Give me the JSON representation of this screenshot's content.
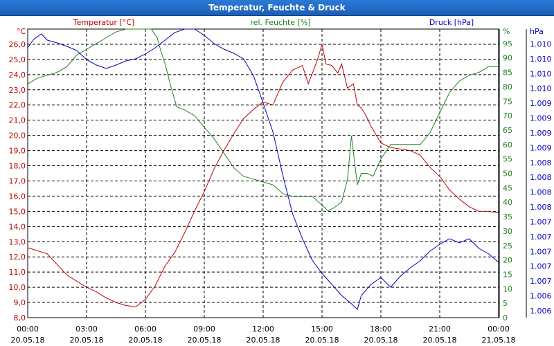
{
  "window": {
    "title": "Temperatur, Feuchte & Druck"
  },
  "colors": {
    "temperature": "#c00000",
    "humidity": "#208020",
    "pressure": "#0000c0",
    "grid": "#000000"
  },
  "chart_data": {
    "type": "line",
    "title": "Temperatur, Feuchte & Druck",
    "x_ticks": [
      {
        "time": "00:00",
        "date": "20.05.18"
      },
      {
        "time": "03:00",
        "date": "20.05.18"
      },
      {
        "time": "06:00",
        "date": "20.05.18"
      },
      {
        "time": "09:00",
        "date": "20.05.18"
      },
      {
        "time": "12:00",
        "date": "20.05.18"
      },
      {
        "time": "15:00",
        "date": "20.05.18"
      },
      {
        "time": "18:00",
        "date": "20.05.18"
      },
      {
        "time": "21:00",
        "date": "20.05.18"
      },
      {
        "time": "00:00",
        "date": "21.05.18"
      }
    ],
    "xlim_hours": [
      0,
      24
    ],
    "axes": {
      "temperature": {
        "label": "Temperatur [°C]",
        "unit": "°C",
        "ylim": [
          8,
          27
        ],
        "ticks": [
          "8,0",
          "9,0",
          "10,0",
          "11,0",
          "12,0",
          "13,0",
          "14,0",
          "15,0",
          "16,0",
          "17,0",
          "18,0",
          "19,0",
          "20,0",
          "21,0",
          "22,0",
          "23,0",
          "24,0",
          "25,0",
          "26,0"
        ]
      },
      "humidity": {
        "label": "rel. Feuchte [%]",
        "unit": "%",
        "ylim": [
          0,
          95
        ],
        "ticks": [
          "0",
          "5",
          "10",
          "15",
          "20",
          "25",
          "30",
          "35",
          "40",
          "45",
          "50",
          "55",
          "60",
          "65",
          "70",
          "75",
          "80",
          "85",
          "90",
          "95"
        ]
      },
      "pressure": {
        "label": "Druck [hPa]",
        "unit": "hPa",
        "ticks": [
          "1.006",
          "1.006",
          "1.007",
          "1.007",
          "1.007",
          "1.007",
          "1.007",
          "1.008",
          "1.008",
          "1.008",
          "1.008",
          "1.009",
          "1.009",
          "1.009",
          "1.009",
          "1.010",
          "1.010",
          "1.010",
          "1.010"
        ]
      }
    },
    "series": [
      {
        "name": "Temperatur [°C]",
        "axis": "temperature",
        "x": [
          0,
          0.5,
          1,
          1.5,
          2,
          2.5,
          3,
          3.5,
          4,
          4.5,
          5,
          5.5,
          6,
          6.5,
          7,
          7.5,
          8,
          8.5,
          9,
          9.5,
          10,
          10.5,
          11,
          11.5,
          12,
          12.5,
          13,
          13.5,
          14,
          14.3,
          14.6,
          14.8,
          15,
          15.2,
          15.5,
          15.8,
          16,
          16.3,
          16.6,
          16.8,
          17,
          17.2,
          17.5,
          18,
          18.5,
          19,
          19.5,
          20,
          20.5,
          21,
          21.5,
          22,
          22.5,
          23,
          23.5,
          24
        ],
        "values": [
          12.6,
          12.4,
          12.2,
          11.5,
          10.8,
          10.4,
          10.0,
          9.7,
          9.3,
          9.0,
          8.8,
          8.7,
          9.2,
          10.1,
          11.4,
          12.3,
          13.6,
          15.0,
          16.3,
          17.8,
          19.0,
          20.1,
          21.1,
          21.7,
          22.2,
          22.0,
          23.5,
          24.3,
          24.6,
          23.4,
          24.4,
          25.1,
          26.0,
          24.7,
          24.6,
          24.1,
          24.7,
          23.1,
          23.4,
          22.0,
          21.8,
          21.4,
          20.6,
          19.5,
          19.2,
          19.1,
          19.0,
          18.7,
          17.9,
          17.3,
          16.4,
          15.8,
          15.3,
          15.0,
          15.0,
          14.9
        ]
      },
      {
        "name": "rel. Feuchte [%]",
        "axis": "humidity",
        "x": [
          0,
          0.5,
          1,
          1.5,
          2,
          2.5,
          3,
          3.5,
          4,
          4.5,
          5,
          5.5,
          6,
          6.3,
          6.6,
          6.8,
          7,
          7.3,
          7.6,
          8,
          8.5,
          9,
          9.5,
          10,
          10.5,
          11,
          11.5,
          12,
          12.5,
          13,
          13.5,
          14,
          14.5,
          15,
          15.3,
          15.6,
          16,
          16.3,
          16.5,
          16.8,
          17,
          17.3,
          17.6,
          18,
          18.5,
          19,
          19.5,
          20,
          20.5,
          21,
          21.5,
          22,
          22.5,
          23,
          23.5,
          24
        ],
        "values": [
          81,
          83,
          84,
          85,
          87,
          91,
          93,
          95,
          97,
          99,
          100,
          100,
          100,
          100,
          97,
          92,
          88,
          80,
          73,
          72,
          70,
          66,
          62,
          57,
          52,
          49,
          48,
          47,
          46,
          43,
          42,
          42,
          42,
          39,
          37,
          38,
          40,
          48,
          63,
          46,
          50,
          50,
          49,
          55,
          60,
          60,
          60,
          60,
          64,
          71,
          78,
          82,
          84,
          85,
          87,
          87
        ]
      },
      {
        "name": "Druck [hPa]",
        "axis": "pressure",
        "x": [
          0,
          0.3,
          0.7,
          1,
          1.5,
          2,
          2.5,
          3,
          3.5,
          4,
          4.5,
          5,
          5.5,
          6,
          6.5,
          7,
          7.5,
          8,
          8.5,
          9,
          9.5,
          10,
          10.5,
          11,
          11.5,
          12,
          12.5,
          13,
          13.5,
          14,
          14.5,
          15,
          15.5,
          16,
          16.5,
          16.8,
          17,
          17.5,
          18,
          18.5,
          19,
          19.5,
          20,
          20.5,
          21,
          21.5,
          22,
          22.5,
          23,
          23.5,
          24
        ],
        "values": [
          380,
          392,
          400,
          391,
          387,
          382,
          376,
          363,
          355,
          350,
          355,
          361,
          364,
          371,
          380,
          391,
          402,
          410,
          408,
          398,
          386,
          378,
          372,
          364,
          340,
          300,
          258,
          196,
          140,
          104,
          73,
          54,
          38,
          22,
          10,
          2,
          22,
          38,
          48,
          34,
          50,
          62,
          72,
          86,
          96,
          104,
          98,
          104,
          90,
          82,
          70
        ]
      }
    ]
  }
}
